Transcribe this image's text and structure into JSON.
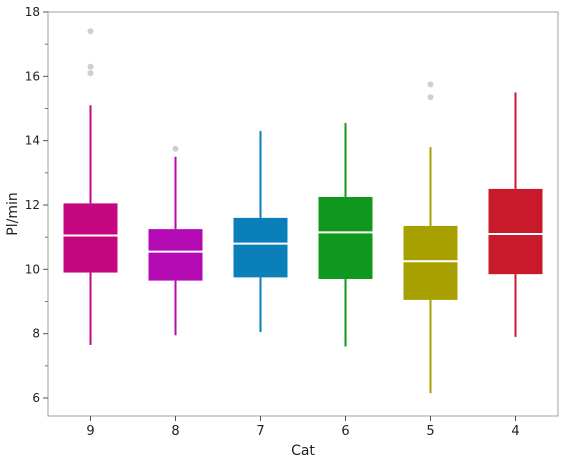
{
  "chart_data": {
    "type": "box",
    "xlabel": "Cat",
    "ylabel": "Pl/min",
    "ylim": [
      6,
      18
    ],
    "yticks": [
      "6",
      "8",
      "10",
      "12",
      "14",
      "16",
      "18"
    ],
    "grid": false,
    "categories": [
      "9",
      "8",
      "7",
      "6",
      "5",
      "4"
    ],
    "boxes": [
      {
        "category": "9",
        "color": "#c5077f",
        "whisker_low": 7.65,
        "q1": 9.9,
        "median": 11.05,
        "q3": 12.05,
        "whisker_high": 15.1,
        "outliers": [
          16.1,
          16.3,
          17.4
        ]
      },
      {
        "category": "8",
        "color": "#b40ab4",
        "whisker_low": 7.95,
        "q1": 9.65,
        "median": 10.55,
        "q3": 11.25,
        "whisker_high": 13.5,
        "outliers": [
          13.75
        ]
      },
      {
        "category": "7",
        "color": "#0a7fb9",
        "whisker_low": 8.05,
        "q1": 9.75,
        "median": 10.8,
        "q3": 11.6,
        "whisker_high": 14.3,
        "outliers": []
      },
      {
        "category": "6",
        "color": "#10981e",
        "whisker_low": 7.6,
        "q1": 9.7,
        "median": 11.15,
        "q3": 12.25,
        "whisker_high": 14.55,
        "outliers": []
      },
      {
        "category": "5",
        "color": "#a8a000",
        "whisker_low": 6.15,
        "q1": 9.05,
        "median": 10.25,
        "q3": 11.35,
        "whisker_high": 13.8,
        "outliers": [
          15.35,
          15.75
        ]
      },
      {
        "category": "4",
        "color": "#c81a2b",
        "whisker_low": 7.9,
        "q1": 9.85,
        "median": 11.1,
        "q3": 12.5,
        "whisker_high": 15.5,
        "outliers": []
      }
    ]
  }
}
